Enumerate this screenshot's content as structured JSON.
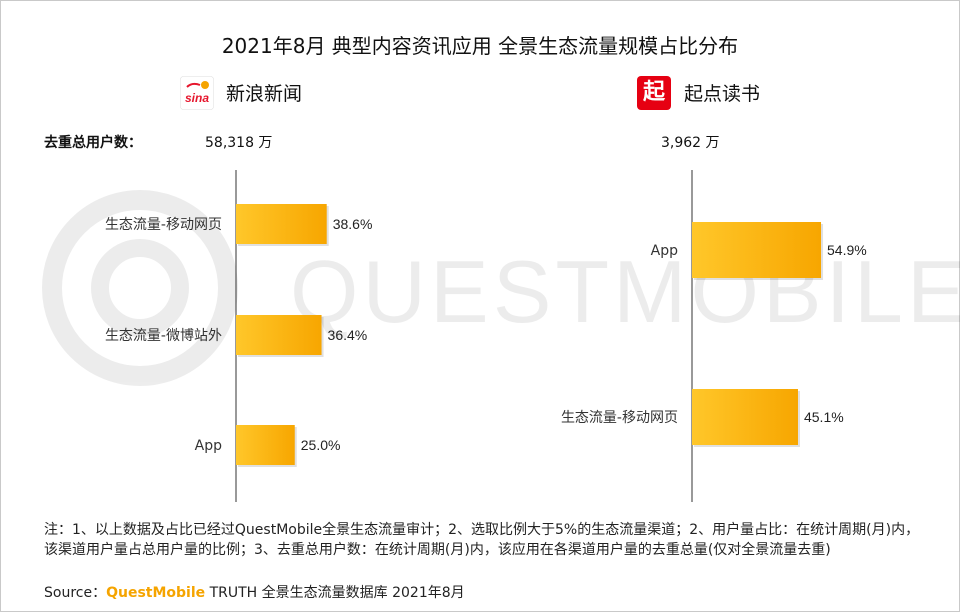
{
  "title": "2021年8月 典型内容资讯应用 全景生态流量规模占比分布",
  "watermark": "QUESTMOBILE",
  "total_label": "去重总用户数：",
  "colors": {
    "bar_start": "#ffc72a",
    "bar_end": "#f7a600",
    "sina_red": "#e6162d",
    "qidian_red": "#e60012"
  },
  "chart_data": [
    {
      "type": "bar",
      "orientation": "horizontal",
      "app_name": "新浪新闻",
      "logo_icon": "sina-logo-icon",
      "total_users": "58,318 万",
      "categories": [
        "生态流量-移动网页",
        "生态流量-微博站外",
        "App"
      ],
      "values": [
        38.6,
        36.4,
        25.0
      ],
      "value_labels": [
        "38.6%",
        "36.4%",
        "25.0%"
      ]
    },
    {
      "type": "bar",
      "orientation": "horizontal",
      "app_name": "起点读书",
      "logo_icon": "qidian-logo-icon",
      "logo_char": "起",
      "total_users": "3,962 万",
      "categories": [
        "App",
        "生态流量-移动网页"
      ],
      "values": [
        54.9,
        45.1
      ],
      "value_labels": [
        "54.9%",
        "45.1%"
      ]
    }
  ],
  "note": "注：1、以上数据及占比已经过QuestMobile全景生态流量审计；2、选取比例大于5%的生态流量渠道；2、用户量占比：在统计周期(月)内，该渠道用户量占总用户量的比例；3、去重总用户数：在统计周期(月)内，该应用在各渠道用户量的去重总量(仅对全景流量去重)",
  "source": {
    "label": "Source：",
    "brand": "QuestMobile",
    "rest": " TRUTH 全景生态流量数据库 2021年8月"
  }
}
